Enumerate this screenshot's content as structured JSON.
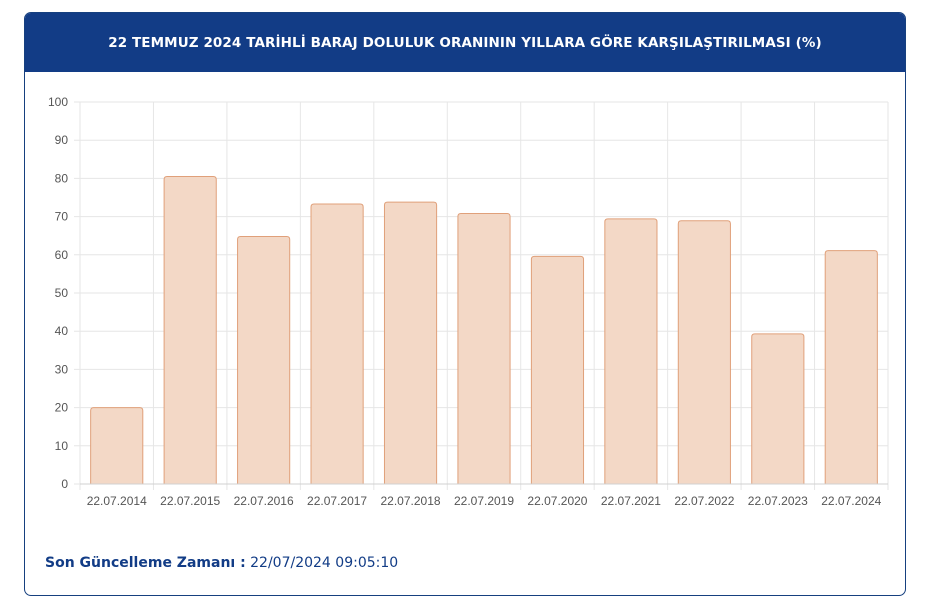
{
  "header": {
    "title": "22 TEMMUZ 2024 TARİHLİ BARAJ DOLULUK ORANININ YILLARA GÖRE KARŞILAŞTIRILMASI (%)"
  },
  "footer": {
    "label": "Son Güncelleme Zamanı :",
    "value": "22/07/2024 09:05:10"
  },
  "colors": {
    "header_bg": "#123c86",
    "bar_fill": "#f3d8c6",
    "bar_stroke": "#e0a07a",
    "grid": "#e6e6e6"
  },
  "chart_data": {
    "type": "bar",
    "title": "22 TEMMUZ 2024 TARİHLİ BARAJ DOLULUK ORANININ YILLARA GÖRE KARŞILAŞTIRILMASI (%)",
    "categories": [
      "22.07.2014",
      "22.07.2015",
      "22.07.2016",
      "22.07.2017",
      "22.07.2018",
      "22.07.2019",
      "22.07.2020",
      "22.07.2021",
      "22.07.2022",
      "22.07.2023",
      "22.07.2024"
    ],
    "values": [
      20.0,
      80.5,
      64.8,
      73.3,
      73.8,
      70.8,
      59.6,
      69.4,
      68.9,
      39.3,
      61.1
    ],
    "ylim": [
      0,
      100
    ],
    "yticks": [
      0,
      10,
      20,
      30,
      40,
      50,
      60,
      70,
      80,
      90,
      100
    ],
    "grid": true,
    "legend": "none"
  }
}
